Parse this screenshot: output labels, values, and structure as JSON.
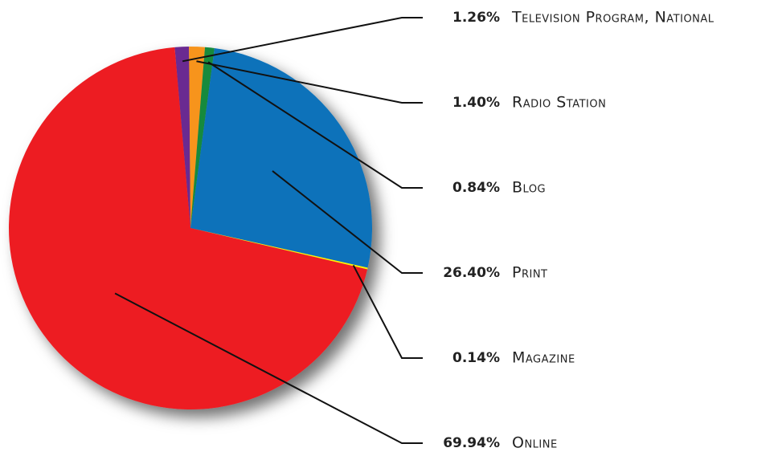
{
  "chart_data": {
    "type": "pie",
    "categories": [
      "Television Program, National",
      "Radio Station",
      "Blog",
      "Print",
      "Magazine",
      "Online"
    ],
    "values": [
      1.26,
      1.4,
      0.84,
      26.4,
      0.14,
      69.94
    ],
    "value_labels": [
      "1.26%",
      "1.40%",
      "0.84%",
      "26.40%",
      "0.14%",
      "69.94%"
    ],
    "colors": [
      "#6a2c91",
      "#f7941d",
      "#128a3e",
      "#0f72ba",
      "#fff200",
      "#ed1c24"
    ]
  }
}
